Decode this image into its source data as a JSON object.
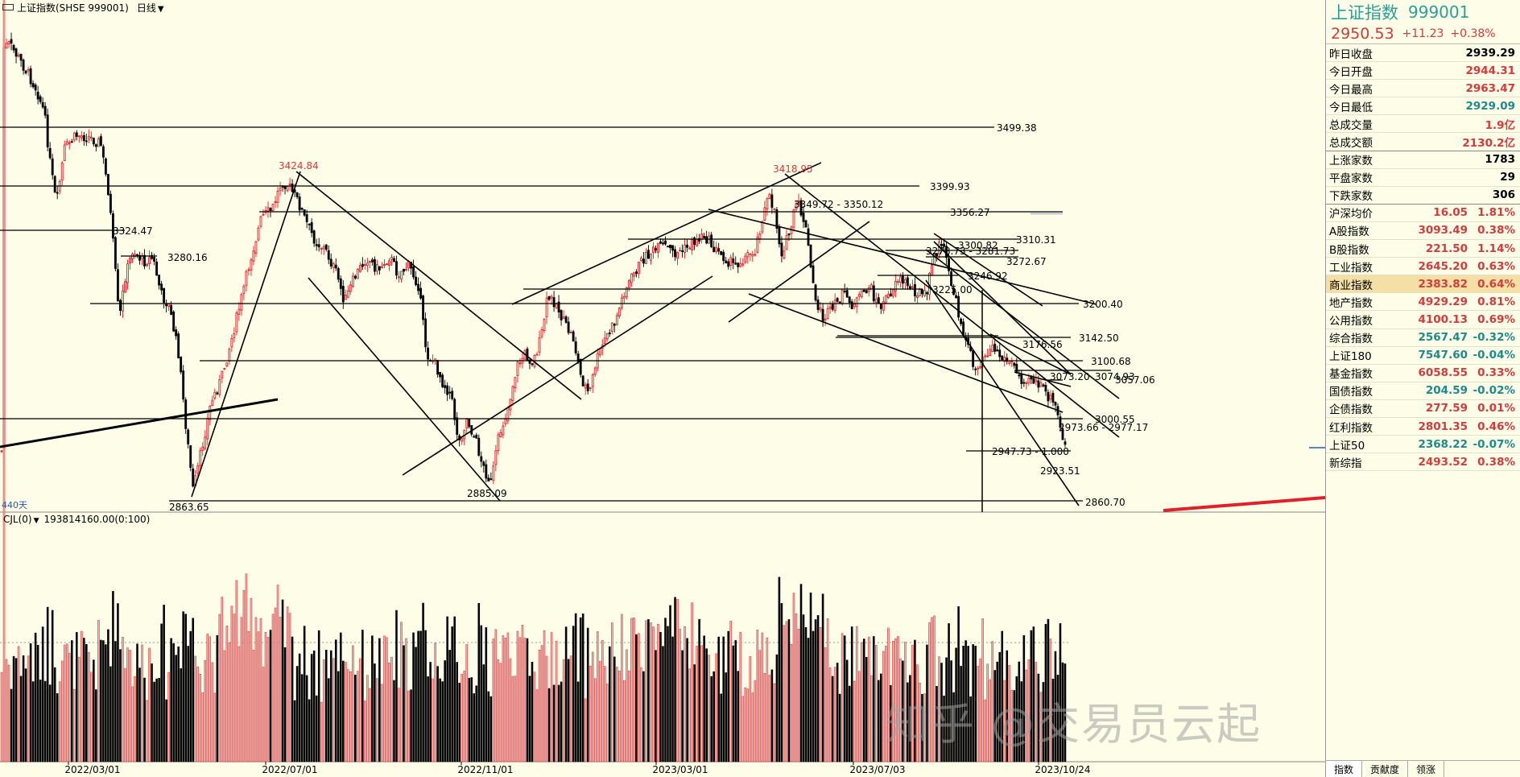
{
  "header": {
    "title": "上证指数(SHSE 999001)",
    "period": "日线"
  },
  "days_label": "440天",
  "volume_header": "CJL(0)",
  "volume_value": "193814160.00(0:100)",
  "price_labels": {
    "high1": "3424.84",
    "high2": "3418.95",
    "low1": "2863.65",
    "low2": "2885.09",
    "lvl_3499": "3499.38",
    "lvl_3399": "3399.93",
    "lvl_3356": "3356.27",
    "lvl_3349": "3349.72 - 3350.12",
    "lvl_3324": "3324.47",
    "lvl_3310": "3310.31",
    "lvl_3300": "3300.82",
    "lvl_3278": "3278.73 - 3281.73",
    "lvl_3280": "3280.16",
    "lvl_3272": "3272.67",
    "lvl_3246": "3246.92",
    "lvl_3225": "3225.00",
    "lvl_3200": "3200.40",
    "lvl_3176": "3176.56",
    "lvl_3142": "3142.50",
    "lvl_3100": "3100.68",
    "lvl_3074": "3074.93",
    "lvl_3073": "3073.20",
    "lvl_3057": "3057.06",
    "lvl_3000": "3000.55",
    "lvl_2973": "2973.66 - 2977.17",
    "lvl_2947": "2947.73 - 1.000",
    "lvl_2923": "2923.51",
    "lvl_2860": "2860.70"
  },
  "dates": [
    "2022/03/01",
    "2022/07/01",
    "2022/11/01",
    "2023/03/01",
    "2023/07/03",
    "2023/10/24"
  ],
  "watermark": "知乎 @交易员云起",
  "colors": {
    "up": "#e0212b",
    "down": "#000000",
    "bg": "#fdfde8",
    "teal": "#2aa198"
  },
  "panel": {
    "name": "上证指数",
    "code": "999001",
    "price": "2950.53",
    "change": "+11.23",
    "change_pct": "+0.38%",
    "quote": [
      {
        "label": "昨日收盘",
        "value": "2939.29",
        "color": "black"
      },
      {
        "label": "今日开盘",
        "value": "2944.31",
        "color": "red"
      },
      {
        "label": "今日最高",
        "value": "2963.47",
        "color": "red"
      },
      {
        "label": "今日最低",
        "value": "2929.09",
        "color": "teal"
      },
      {
        "label": "总成交量",
        "value": "1.9亿",
        "color": "red"
      },
      {
        "label": "总成交额",
        "value": "2130.2亿",
        "color": "red"
      }
    ],
    "breadth": [
      {
        "label": "上涨家数",
        "value": "1783",
        "color": "black"
      },
      {
        "label": "平盘家数",
        "value": "29",
        "color": "black"
      },
      {
        "label": "下跌家数",
        "value": "306",
        "color": "black"
      }
    ],
    "indices": [
      {
        "label": "沪深均价",
        "value": "16.05",
        "pct": "1.81%",
        "color": "red"
      },
      {
        "label": "A股指数",
        "value": "3093.49",
        "pct": "0.38%",
        "color": "red"
      },
      {
        "label": "B股指数",
        "value": "221.50",
        "pct": "1.14%",
        "color": "red"
      },
      {
        "label": "工业指数",
        "value": "2645.20",
        "pct": "0.63%",
        "color": "red"
      },
      {
        "label": "商业指数",
        "value": "2383.82",
        "pct": "0.64%",
        "color": "red",
        "highlight": true
      },
      {
        "label": "地产指数",
        "value": "4929.29",
        "pct": "0.81%",
        "color": "red"
      },
      {
        "label": "公用指数",
        "value": "4100.13",
        "pct": "0.69%",
        "color": "red"
      },
      {
        "label": "综合指数",
        "value": "2567.47",
        "pct": "-0.32%",
        "color": "teal"
      },
      {
        "label": "上证180",
        "value": "7547.60",
        "pct": "-0.04%",
        "color": "teal"
      },
      {
        "label": "基金指数",
        "value": "6058.55",
        "pct": "0.33%",
        "color": "red"
      },
      {
        "label": "国债指数",
        "value": "204.59",
        "pct": "-0.02%",
        "color": "teal"
      },
      {
        "label": "企债指数",
        "value": "277.59",
        "pct": "0.01%",
        "color": "red"
      },
      {
        "label": "红利指数",
        "value": "2801.35",
        "pct": "0.46%",
        "color": "red"
      },
      {
        "label": "上证50",
        "value": "2368.22",
        "pct": "-0.07%",
        "color": "teal"
      },
      {
        "label": "新综指",
        "value": "2493.52",
        "pct": "0.38%",
        "color": "red"
      }
    ],
    "tabs": [
      "指数",
      "贡献度",
      "领涨"
    ]
  }
}
